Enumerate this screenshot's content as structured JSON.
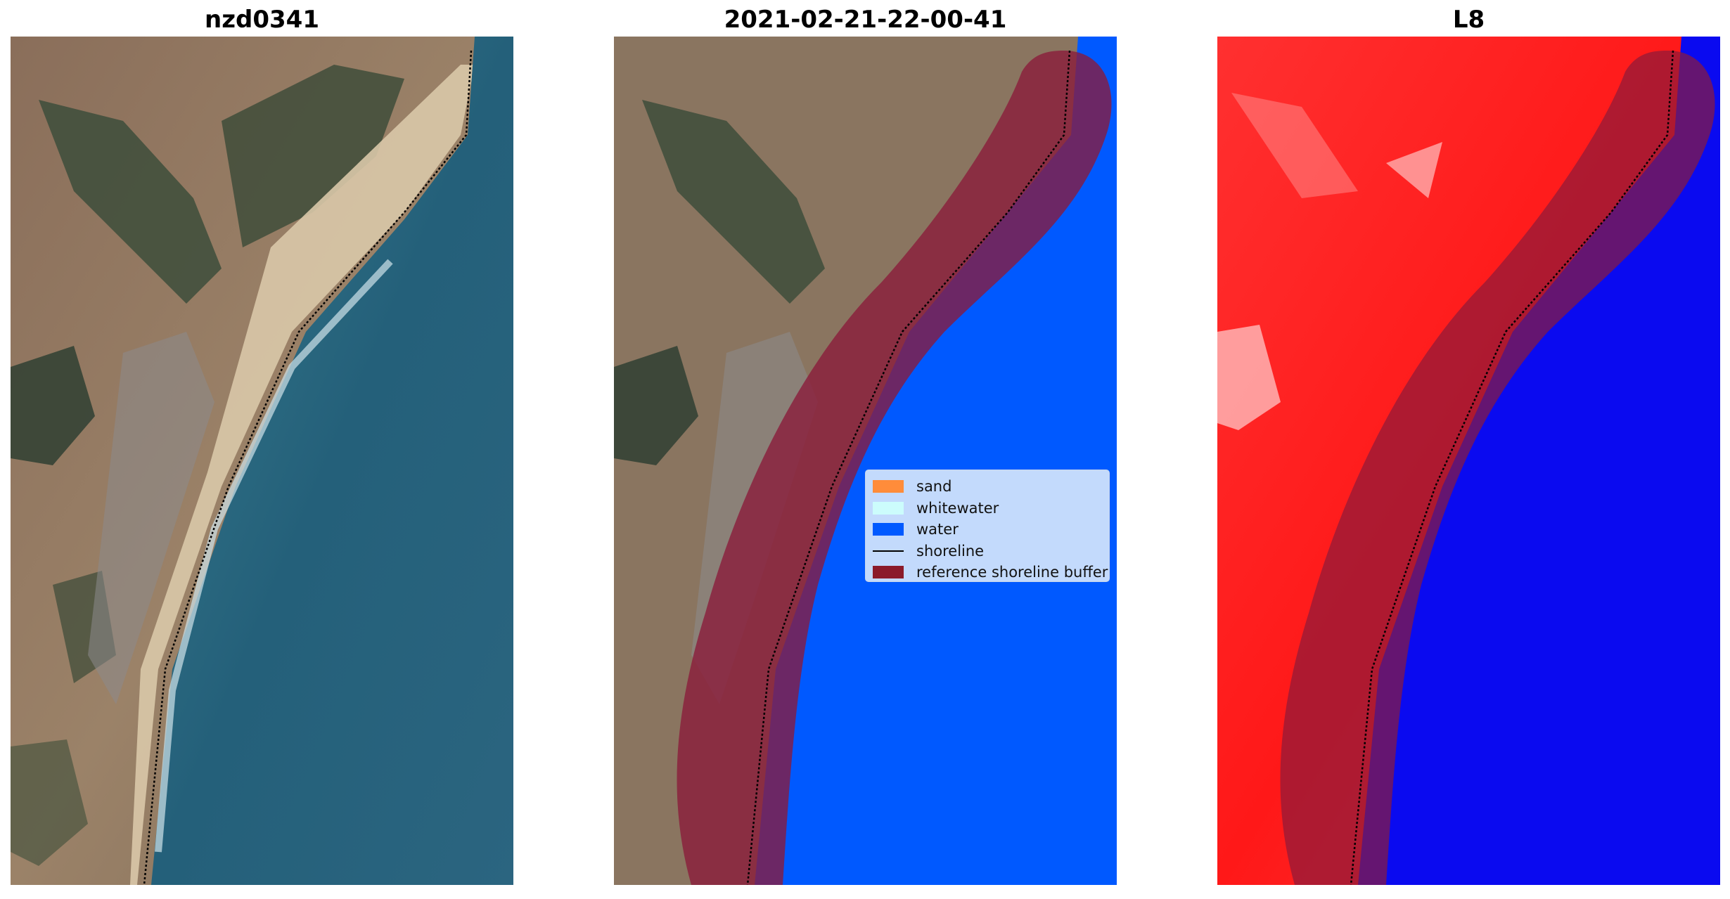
{
  "panels": [
    {
      "title": "nzd0341"
    },
    {
      "title": "2021-02-21-22-00-41"
    },
    {
      "title": "L8"
    }
  ],
  "legend": {
    "items": [
      {
        "label": "sand",
        "color": "#ff8c3a",
        "kind": "patch"
      },
      {
        "label": "whitewater",
        "color": "#ccfcfc",
        "kind": "patch"
      },
      {
        "label": "water",
        "color": "#0059ff",
        "kind": "patch"
      },
      {
        "label": "shoreline",
        "color": "#000000",
        "kind": "line"
      },
      {
        "label": "reference shoreline buffer",
        "color": "#8b1a2a",
        "kind": "patch"
      }
    ]
  },
  "colors": {
    "land_rgb": "#8a7560",
    "vegetation": "#3b4a38",
    "ocean_rgb": "#26637a",
    "water_class": "#0059ff",
    "land_index": "#ff1a1a",
    "water_index": "#0a0af0",
    "buffer": "#8b1a2a"
  }
}
